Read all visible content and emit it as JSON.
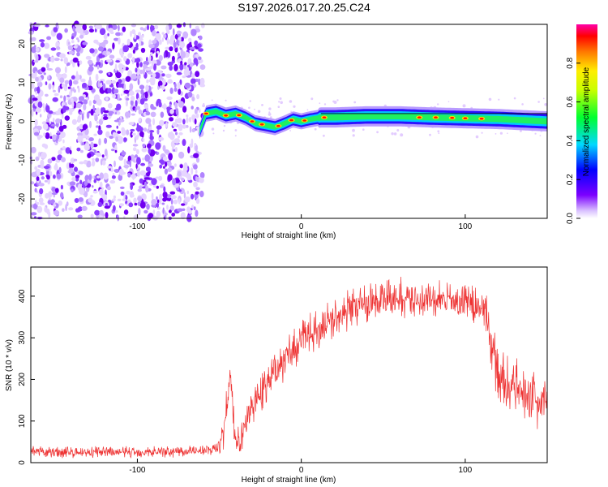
{
  "title": "S197.2026.017.20.25.C24",
  "chart_data": [
    {
      "type": "heatmap",
      "name": "spectrogram",
      "xlabel": "Height of straight line (km)",
      "ylabel": "Frequency (Hz)",
      "xlim": [
        -165,
        150
      ],
      "ylim": [
        -25,
        25
      ],
      "xticks": [
        -100,
        0,
        100
      ],
      "yticks": [
        -20,
        -10,
        0,
        10,
        20
      ],
      "noise_region_x": [
        -165,
        -60
      ],
      "ridge_frequency_hz": [
        [
          -62,
          -2.5
        ],
        [
          -58,
          2
        ],
        [
          -52,
          2.5
        ],
        [
          -46,
          1.5
        ],
        [
          -40,
          2
        ],
        [
          -34,
          1
        ],
        [
          -28,
          -0.5
        ],
        [
          -22,
          -1
        ],
        [
          -16,
          -1.5
        ],
        [
          -10,
          -0.5
        ],
        [
          -5,
          0.5
        ],
        [
          0,
          0
        ],
        [
          5,
          0.5
        ],
        [
          12,
          1
        ],
        [
          20,
          1
        ],
        [
          40,
          1.3
        ],
        [
          60,
          1.3
        ],
        [
          80,
          1
        ],
        [
          100,
          0.8
        ],
        [
          120,
          0.6
        ],
        [
          150,
          0
        ]
      ],
      "colorbar": {
        "label": "Normalized spectral amplitude",
        "range": [
          0,
          1
        ],
        "ticks": [
          0.0,
          0.2,
          0.4,
          0.6,
          0.8
        ]
      }
    },
    {
      "type": "line",
      "name": "snr",
      "xlabel": "Height of straight line (km)",
      "ylabel": "SNR (10 * v/v)",
      "xlim": [
        -165,
        150
      ],
      "ylim": [
        0,
        470
      ],
      "xticks": [
        -100,
        0,
        100
      ],
      "yticks": [
        0,
        100,
        200,
        300,
        400
      ],
      "color": "#ee3333",
      "envelope": [
        [
          -165,
          25
        ],
        [
          -120,
          25
        ],
        [
          -80,
          27
        ],
        [
          -55,
          30
        ],
        [
          -48,
          50
        ],
        [
          -46,
          120
        ],
        [
          -43,
          200
        ],
        [
          -41,
          90
        ],
        [
          -38,
          40
        ],
        [
          -34,
          80
        ],
        [
          -30,
          140
        ],
        [
          -20,
          200
        ],
        [
          -10,
          250
        ],
        [
          0,
          290
        ],
        [
          10,
          320
        ],
        [
          20,
          350
        ],
        [
          30,
          370
        ],
        [
          40,
          385
        ],
        [
          60,
          395
        ],
        [
          80,
          390
        ],
        [
          100,
          385
        ],
        [
          112,
          370
        ],
        [
          116,
          280
        ],
        [
          120,
          210
        ],
        [
          130,
          180
        ],
        [
          140,
          160
        ],
        [
          150,
          140
        ]
      ]
    }
  ]
}
